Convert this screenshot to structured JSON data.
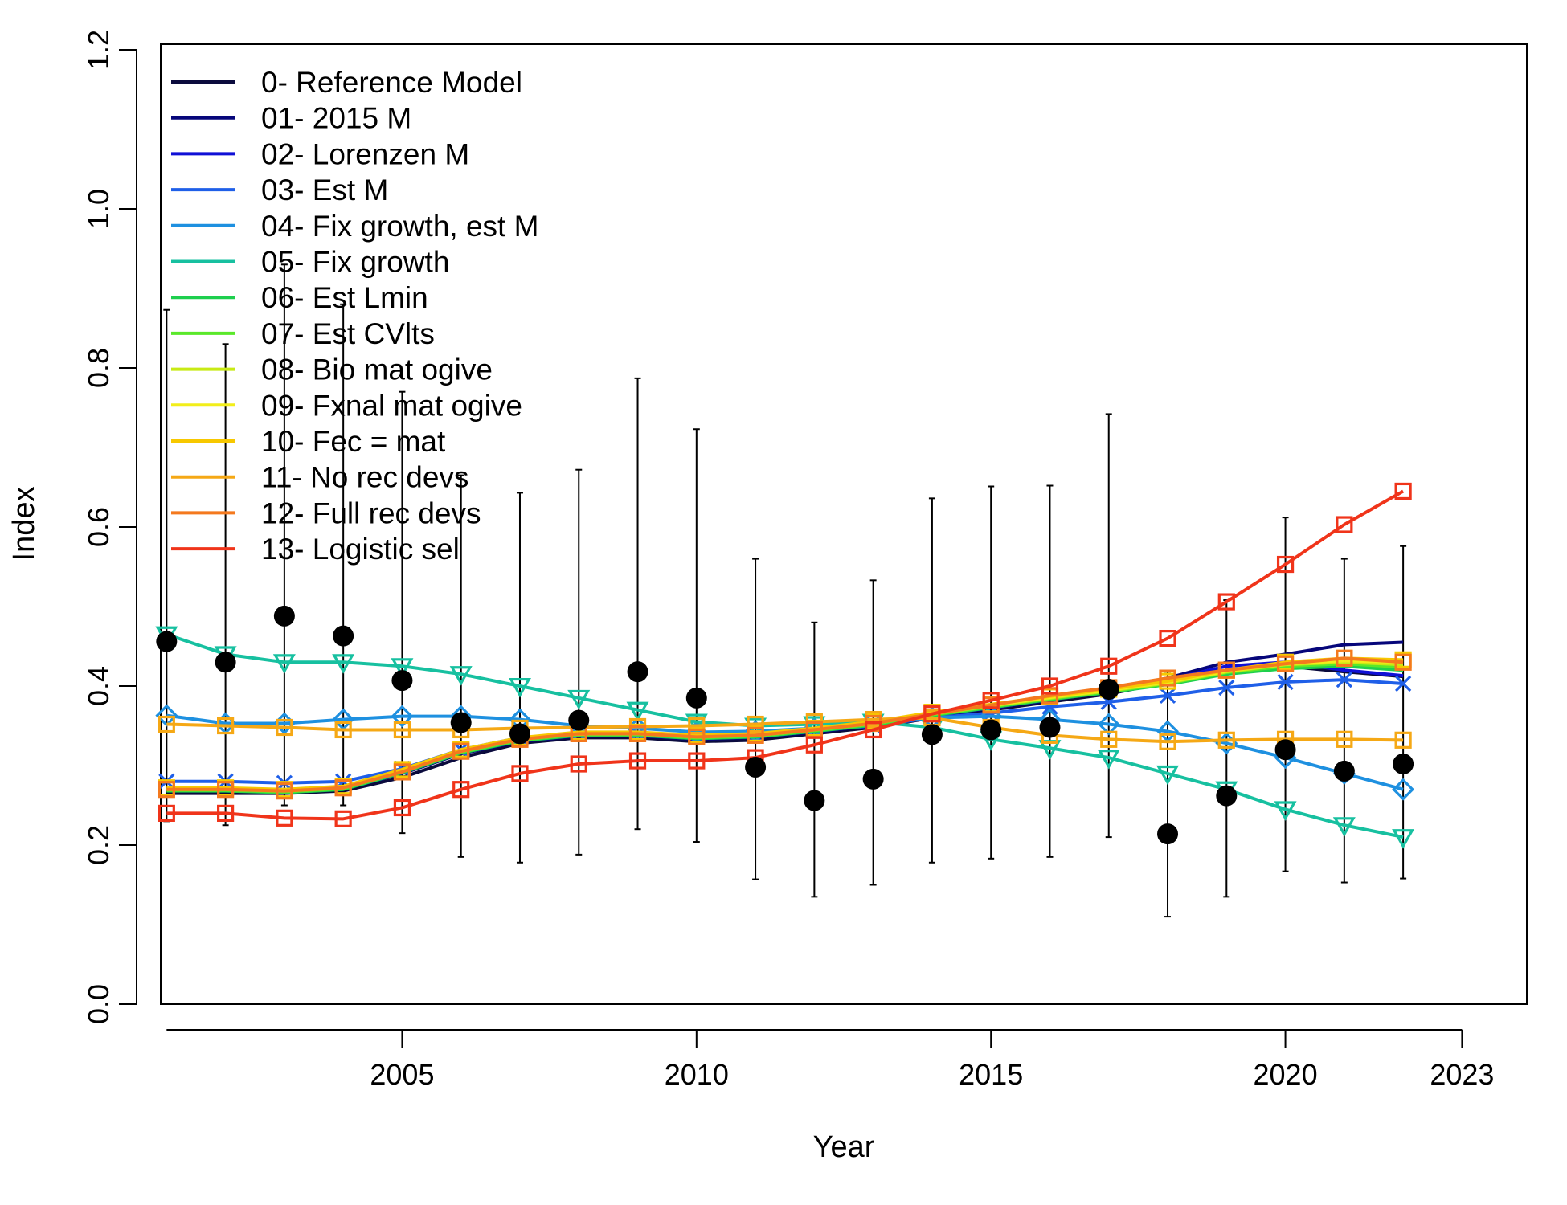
{
  "chart_data": {
    "type": "line",
    "xlabel": "Year",
    "ylabel": "Index",
    "xlim": [
      2000.9,
      2024.1
    ],
    "ylim": [
      0,
      1.2
    ],
    "xticks": [
      2005,
      2010,
      2015,
      2020,
      2023
    ],
    "yticks": [
      0.0,
      0.2,
      0.4,
      0.6,
      0.8,
      1.0,
      1.2
    ],
    "ytick_labels": [
      "0.0",
      "0.2",
      "0.4",
      "0.6",
      "0.8",
      "1.0",
      "1.2"
    ],
    "legend_position": "top-left",
    "x": [
      2001,
      2002,
      2003,
      2004,
      2005,
      2006,
      2007,
      2008,
      2009,
      2010,
      2011,
      2012,
      2013,
      2014,
      2015,
      2016,
      2017,
      2018,
      2019,
      2020,
      2021,
      2022
    ],
    "series": [
      {
        "name": "0- Reference Model",
        "color": "#0b0b3d",
        "marker": "none",
        "values": [
          0.265,
          0.265,
          0.265,
          0.268,
          0.285,
          0.31,
          0.328,
          0.335,
          0.335,
          0.33,
          0.332,
          0.34,
          0.348,
          0.36,
          0.37,
          0.38,
          0.39,
          0.405,
          0.42,
          0.425,
          0.418,
          0.412
        ]
      },
      {
        "name": "01- 2015 M",
        "color": "#06067a",
        "marker": "none",
        "values": [
          0.268,
          0.268,
          0.266,
          0.27,
          0.29,
          0.315,
          0.33,
          0.337,
          0.337,
          0.333,
          0.335,
          0.342,
          0.35,
          0.362,
          0.372,
          0.382,
          0.395,
          0.41,
          0.43,
          0.44,
          0.452,
          0.455
        ]
      },
      {
        "name": "02- Lorenzen M",
        "color": "#1010d6",
        "marker": "none",
        "values": [
          0.27,
          0.27,
          0.27,
          0.272,
          0.292,
          0.317,
          0.332,
          0.338,
          0.338,
          0.334,
          0.336,
          0.343,
          0.351,
          0.363,
          0.373,
          0.383,
          0.392,
          0.408,
          0.425,
          0.43,
          0.42,
          0.413
        ]
      },
      {
        "name": "03- Est M",
        "color": "#1f5fe8",
        "marker": "x",
        "values": [
          0.28,
          0.28,
          0.278,
          0.28,
          0.296,
          0.32,
          0.335,
          0.34,
          0.34,
          0.336,
          0.338,
          0.344,
          0.35,
          0.36,
          0.366,
          0.374,
          0.38,
          0.388,
          0.398,
          0.405,
          0.408,
          0.403
        ]
      },
      {
        "name": "04- Fix growth, est M",
        "color": "#1e90e0",
        "marker": "diamond",
        "values": [
          0.363,
          0.353,
          0.353,
          0.358,
          0.362,
          0.362,
          0.358,
          0.35,
          0.347,
          0.342,
          0.343,
          0.347,
          0.355,
          0.36,
          0.362,
          0.358,
          0.352,
          0.343,
          0.328,
          0.31,
          0.29,
          0.27
        ]
      },
      {
        "name": "05- Fix growth",
        "color": "#17c0a0",
        "marker": "triangle-down",
        "values": [
          0.465,
          0.44,
          0.43,
          0.43,
          0.425,
          0.415,
          0.4,
          0.385,
          0.37,
          0.355,
          0.35,
          0.352,
          0.355,
          0.348,
          0.333,
          0.322,
          0.31,
          0.29,
          0.27,
          0.245,
          0.225,
          0.21
        ]
      },
      {
        "name": "06- Est Lmin",
        "color": "#1ecf4e",
        "marker": "none",
        "values": [
          0.268,
          0.268,
          0.266,
          0.27,
          0.291,
          0.316,
          0.331,
          0.338,
          0.338,
          0.334,
          0.336,
          0.343,
          0.351,
          0.363,
          0.373,
          0.383,
          0.392,
          0.402,
          0.415,
          0.422,
          0.425,
          0.42
        ]
      },
      {
        "name": "07- Est CVlts",
        "color": "#5ae82a",
        "marker": "none",
        "values": [
          0.269,
          0.269,
          0.267,
          0.271,
          0.292,
          0.317,
          0.332,
          0.339,
          0.339,
          0.335,
          0.337,
          0.344,
          0.352,
          0.364,
          0.374,
          0.384,
          0.393,
          0.403,
          0.417,
          0.425,
          0.428,
          0.424
        ]
      },
      {
        "name": "08- Bio mat ogive",
        "color": "#c8ea14",
        "marker": "none",
        "values": [
          0.27,
          0.27,
          0.268,
          0.272,
          0.293,
          0.318,
          0.333,
          0.34,
          0.34,
          0.336,
          0.338,
          0.345,
          0.353,
          0.365,
          0.375,
          0.385,
          0.394,
          0.404,
          0.418,
          0.427,
          0.43,
          0.427
        ]
      },
      {
        "name": "09- Fxnal mat ogive",
        "color": "#f2ee1a",
        "marker": "none",
        "values": [
          0.271,
          0.271,
          0.269,
          0.273,
          0.294,
          0.319,
          0.334,
          0.341,
          0.341,
          0.337,
          0.339,
          0.346,
          0.354,
          0.366,
          0.376,
          0.386,
          0.395,
          0.405,
          0.419,
          0.428,
          0.432,
          0.43
        ]
      },
      {
        "name": "10- Fec = mat",
        "color": "#f7c800",
        "marker": "square",
        "values": [
          0.272,
          0.272,
          0.27,
          0.274,
          0.295,
          0.32,
          0.335,
          0.342,
          0.342,
          0.338,
          0.34,
          0.347,
          0.355,
          0.367,
          0.377,
          0.387,
          0.396,
          0.406,
          0.42,
          0.43,
          0.435,
          0.433
        ]
      },
      {
        "name": "11- No rec devs",
        "color": "#f5a815",
        "marker": "square",
        "values": [
          0.352,
          0.35,
          0.348,
          0.345,
          0.345,
          0.345,
          0.347,
          0.348,
          0.349,
          0.35,
          0.352,
          0.355,
          0.358,
          0.36,
          0.348,
          0.338,
          0.333,
          0.33,
          0.332,
          0.333,
          0.333,
          0.332
        ]
      },
      {
        "name": "12- Full rec devs",
        "color": "#f4791e",
        "marker": "square",
        "values": [
          0.27,
          0.27,
          0.268,
          0.272,
          0.292,
          0.318,
          0.333,
          0.34,
          0.34,
          0.336,
          0.338,
          0.345,
          0.353,
          0.365,
          0.376,
          0.388,
          0.398,
          0.41,
          0.42,
          0.428,
          0.435,
          0.43
        ]
      },
      {
        "name": "13- Logistic sel",
        "color": "#f0341a",
        "marker": "square",
        "values": [
          0.24,
          0.24,
          0.234,
          0.233,
          0.247,
          0.27,
          0.29,
          0.302,
          0.306,
          0.306,
          0.31,
          0.326,
          0.345,
          0.365,
          0.382,
          0.4,
          0.425,
          0.46,
          0.506,
          0.553,
          0.603,
          0.645
        ]
      }
    ],
    "observed": {
      "name": "observed",
      "values": [
        0.456,
        0.43,
        0.488,
        0.463,
        0.407,
        0.354,
        0.34,
        0.357,
        0.418,
        0.385,
        0.298,
        0.256,
        0.283,
        0.339,
        0.345,
        0.348,
        0.396,
        0.214,
        0.262,
        0.32,
        0.293,
        0.302
      ],
      "lower": [
        0.23,
        0.225,
        0.25,
        0.25,
        0.215,
        0.185,
        0.178,
        0.188,
        0.22,
        0.204,
        0.157,
        0.135,
        0.15,
        0.178,
        0.183,
        0.185,
        0.21,
        0.11,
        0.135,
        0.167,
        0.153,
        0.158
      ],
      "upper": [
        0.873,
        0.83,
        0.93,
        0.88,
        0.77,
        0.665,
        0.643,
        0.672,
        0.787,
        0.723,
        0.56,
        0.48,
        0.533,
        0.636,
        0.651,
        0.652,
        0.742,
        0.418,
        0.508,
        0.612,
        0.56,
        0.576
      ]
    }
  }
}
